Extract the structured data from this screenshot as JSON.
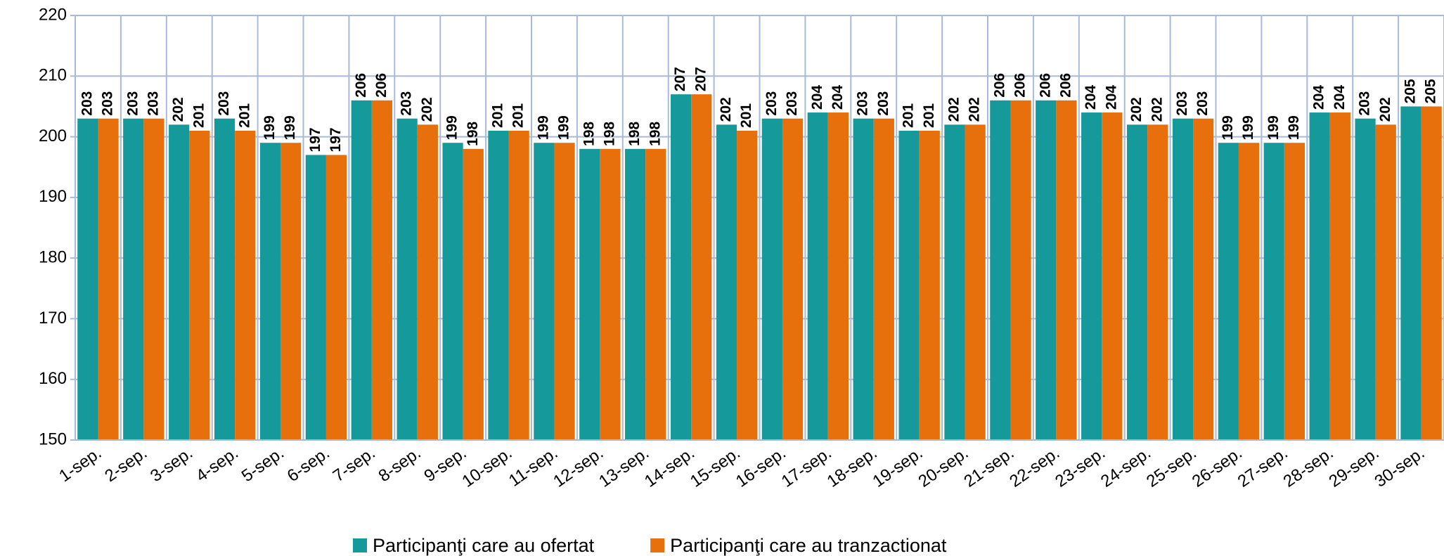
{
  "chart_data": {
    "type": "bar",
    "categories": [
      "1-sep.",
      "2-sep.",
      "3-sep.",
      "4-sep.",
      "5-sep.",
      "6-sep.",
      "7-sep.",
      "8-sep.",
      "9-sep.",
      "10-sep.",
      "11-sep.",
      "12-sep.",
      "13-sep.",
      "14-sep.",
      "15-sep.",
      "16-sep.",
      "17-sep.",
      "18-sep.",
      "19-sep.",
      "20-sep.",
      "21-sep.",
      "22-sep.",
      "23-sep.",
      "24-sep.",
      "25-sep.",
      "26-sep.",
      "27-sep.",
      "28-sep.",
      "29-sep.",
      "30-sep."
    ],
    "series": [
      {
        "name": "Participanţi care au ofertat",
        "color": "#16999a",
        "values": [
          203,
          203,
          202,
          203,
          199,
          197,
          206,
          203,
          199,
          201,
          199,
          198,
          198,
          207,
          202,
          203,
          204,
          203,
          201,
          202,
          206,
          206,
          204,
          202,
          203,
          199,
          199,
          204,
          203,
          205
        ]
      },
      {
        "name": "Participanţi care au tranzactionat",
        "color": "#e8700c",
        "values": [
          203,
          203,
          201,
          201,
          199,
          197,
          206,
          202,
          198,
          201,
          199,
          198,
          198,
          207,
          201,
          203,
          204,
          203,
          201,
          202,
          206,
          206,
          204,
          202,
          203,
          199,
          199,
          204,
          202,
          205
        ]
      }
    ],
    "ylim": [
      150,
      220
    ],
    "yticks": [
      150,
      160,
      170,
      180,
      190,
      200,
      210,
      220
    ],
    "grid": true,
    "legend": "bottom"
  }
}
